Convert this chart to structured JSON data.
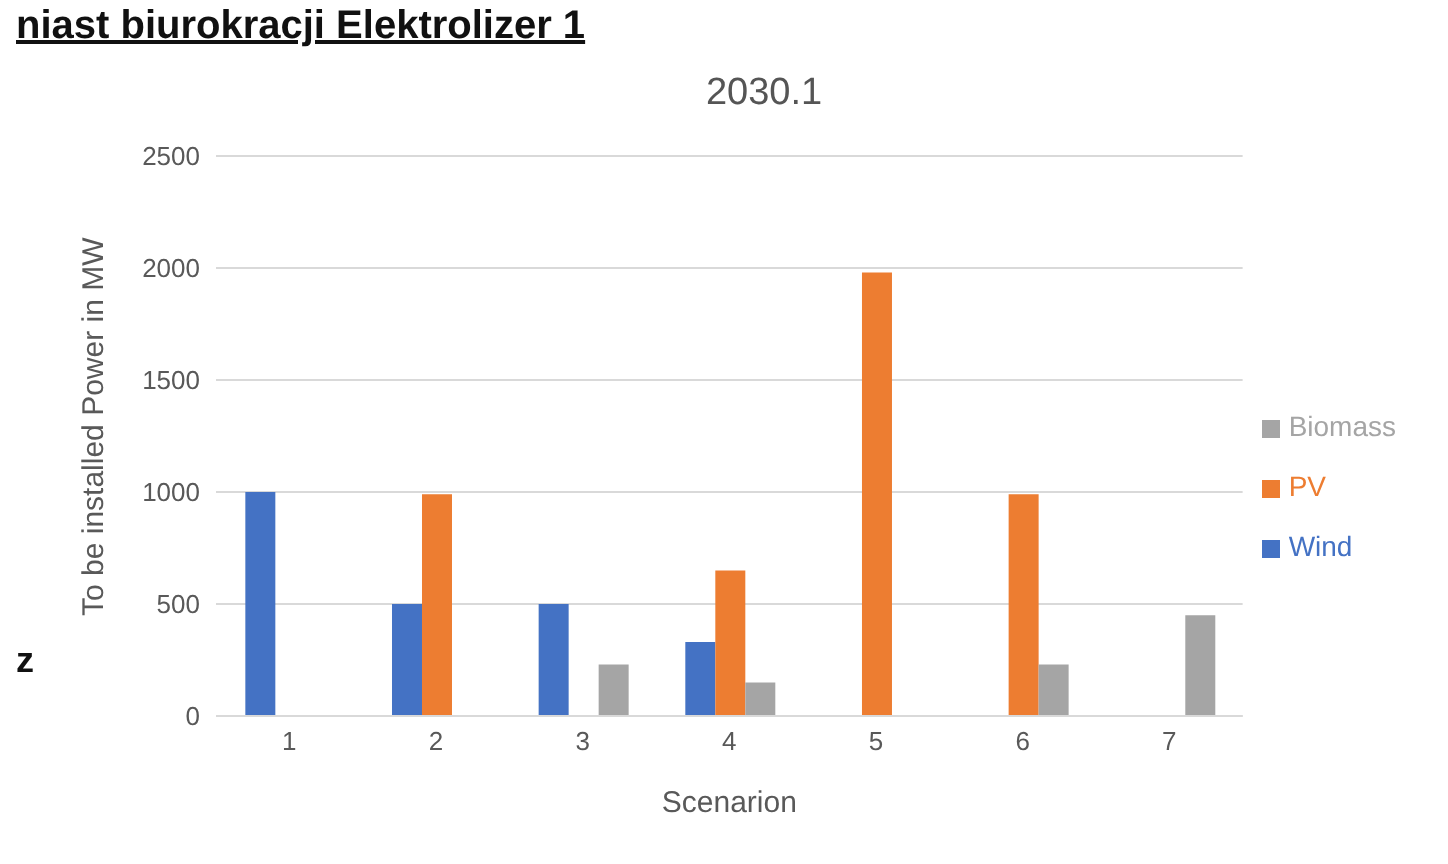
{
  "chart_data": {
    "type": "bar",
    "title": "2030.1",
    "xlabel": "Scenarion",
    "ylabel": "To be installed Power in MW",
    "categories": [
      "1",
      "2",
      "3",
      "4",
      "5",
      "6",
      "7"
    ],
    "series": [
      {
        "name": "Wind",
        "color": "#4472c4",
        "values": [
          1000,
          500,
          500,
          330,
          null,
          null,
          null
        ]
      },
      {
        "name": "PV",
        "color": "#ed7d31",
        "values": [
          null,
          990,
          null,
          650,
          1980,
          990,
          null
        ]
      },
      {
        "name": "Biomass",
        "color": "#a5a5a5",
        "values": [
          null,
          null,
          230,
          150,
          null,
          230,
          450
        ]
      }
    ],
    "ylim": [
      0,
      2500
    ],
    "yticks": [
      0,
      500,
      1000,
      1500,
      2000,
      2500
    ],
    "grid": "y",
    "legend": "right",
    "annotations": [
      "niast biurokracji Elektrolizer 1",
      "z"
    ]
  }
}
